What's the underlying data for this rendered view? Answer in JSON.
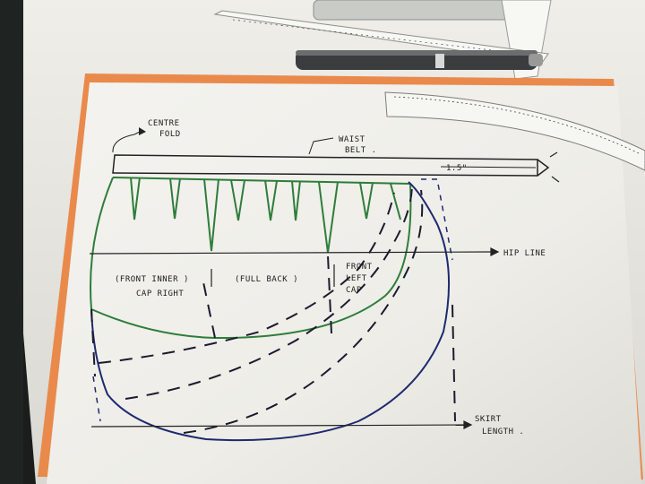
{
  "labels": {
    "centre_fold": [
      "CENTRE",
      "FOLD"
    ],
    "waist_belt": [
      "WAIST",
      "BELT ."
    ],
    "belt_measure": "1.5\"",
    "hip_line": "HIP LINE",
    "front_inner_cap": [
      "(FRONT INNER )",
      "CAP RIGHT"
    ],
    "full_back": "(FULL BACK )",
    "front_left_cap": [
      "FRONT",
      "LEFT",
      "CAP"
    ],
    "skirt_length": [
      "SKIRT",
      "LENGTH ."
    ]
  },
  "colors": {
    "desk": "#1a1d1c",
    "folder": "#e98a4c",
    "paper": "#f1f0ec",
    "green_ink": "#2e7d3a",
    "blue_ink": "#1d2a6e",
    "black_ink": "#222222"
  }
}
